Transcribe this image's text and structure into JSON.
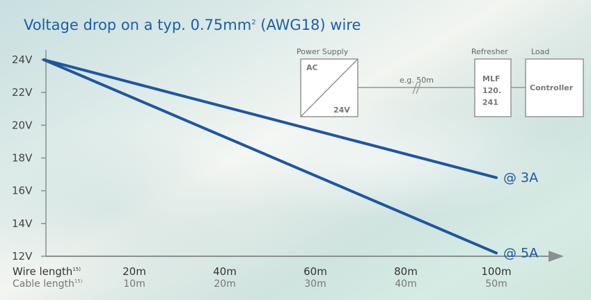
{
  "title": "Voltage drop on a typ. 0.75mm",
  "title_sup": "2",
  "title_tail": " (AWG18) wire",
  "colors": {
    "series": "#1f56a0",
    "axis": "#8a8f91",
    "title": "#1a5fa6"
  },
  "chart_data": {
    "type": "line",
    "title": "Voltage drop on a typ. 0.75mm² (AWG18) wire",
    "ylim": [
      12,
      24
    ],
    "y_ticks": [
      "24V",
      "22V",
      "20V",
      "18V",
      "16V",
      "14V",
      "12V"
    ],
    "y_tick_values": [
      24,
      22,
      20,
      18,
      16,
      14,
      12
    ],
    "xlim": [
      0,
      100
    ],
    "x_tick_values": [
      20,
      40,
      60,
      80,
      100
    ],
    "x_ticks_wire": [
      "20m",
      "40m",
      "60m",
      "80m",
      "100m"
    ],
    "x_ticks_cable": [
      "10m",
      "20m",
      "30m",
      "40m",
      "50m"
    ],
    "row_labels": {
      "wire": "Wire length",
      "cable": "Cable length",
      "footnote": "15)"
    },
    "series": [
      {
        "name": "@ 3A",
        "x": [
          0,
          100
        ],
        "y": [
          24,
          16.8
        ]
      },
      {
        "name": "@ 5A",
        "x": [
          0,
          100
        ],
        "y": [
          24,
          12.2
        ]
      }
    ],
    "grid": false
  },
  "diagram": {
    "power_supply_label": "Power Supply",
    "ac_label": "AC",
    "dc_label": "24V",
    "distance_label": "e.g. 50m",
    "refresher_label": "Refresher",
    "mlf_lines": [
      "MLF",
      "120.",
      "241"
    ],
    "load_label": "Load",
    "controller_label": "Controller"
  }
}
